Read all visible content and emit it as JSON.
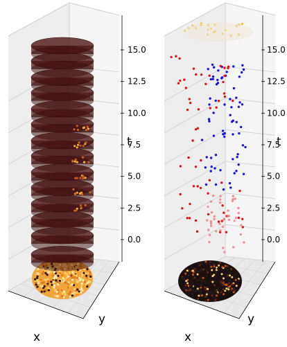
{
  "chart_data": [
    {
      "type": "scatter",
      "subtype": "3d-stacked-hexagonal-layers",
      "xlabel": "x",
      "ylabel": "y",
      "zlabel": "t",
      "zticks": [
        "0.0",
        "2.5",
        "5.0",
        "7.5",
        "10.0",
        "12.5",
        "15.0"
      ],
      "zlim": [
        -2.0,
        17.5
      ],
      "layer_t": [
        -1.5,
        0.0,
        1.3,
        2.5,
        3.8,
        5.0,
        6.3,
        7.5,
        8.8,
        10.0,
        11.3,
        12.5,
        13.8,
        15.0
      ],
      "layer_color": "#4a1212",
      "bottom_projection": {
        "colormap": "afmhot",
        "base_color": "#f0a030"
      },
      "grid": true
    },
    {
      "type": "scatter",
      "subtype": "3d-event-points",
      "xlabel": "x",
      "ylabel": "y",
      "zlabel": "t",
      "zticks": [
        "0.0",
        "2.5",
        "5.0",
        "7.5",
        "10.0",
        "12.5",
        "15.0"
      ],
      "zlim": [
        -2.0,
        17.5
      ],
      "series": [
        {
          "color": "#1414e0",
          "t_range": [
            4.0,
            14.0
          ],
          "count": 70
        },
        {
          "color": "#e01414",
          "t_range": [
            0.5,
            14.5
          ],
          "count": 60
        },
        {
          "color": "#f08080",
          "t_range": [
            -1.0,
            4.0
          ],
          "count": 40
        },
        {
          "color": "#f0c040",
          "t_range": [
            16.0,
            17.0
          ],
          "count": 20
        }
      ],
      "bottom_projection": {
        "colormap": "afmhot",
        "base_color": "#1a1010"
      },
      "grid": true
    }
  ]
}
